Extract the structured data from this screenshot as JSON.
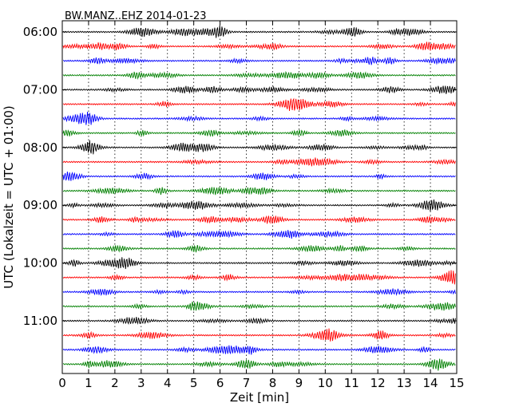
{
  "chart_data": {
    "type": "line",
    "title": "BW.MANZ..EHZ 2014-01-23",
    "xlabel": "Zeit  [min]",
    "ylabel": "UTC (Lokalzeit = UTC + 01:00)",
    "xlim": [
      0,
      15
    ],
    "x_ticks": [
      "0",
      "1",
      "2",
      "3",
      "4",
      "5",
      "6",
      "7",
      "8",
      "9",
      "10",
      "11",
      "12",
      "13",
      "14",
      "15"
    ],
    "y_ticks": [
      "06:00",
      "07:00",
      "08:00",
      "09:00",
      "10:00",
      "11:00"
    ],
    "trace_start_times": [
      "06:00",
      "06:15",
      "06:30",
      "06:45",
      "07:00",
      "07:15",
      "07:30",
      "07:45",
      "08:00",
      "08:15",
      "08:30",
      "08:45",
      "09:00",
      "09:15",
      "09:30",
      "09:45",
      "10:00",
      "10:15",
      "10:30",
      "10:45",
      "11:00",
      "11:15",
      "11:30",
      "11:45"
    ],
    "trace_colors": [
      "#000000",
      "#ff0000",
      "#0000ff",
      "#008000"
    ],
    "grid": "vertical dotted at each minute"
  }
}
